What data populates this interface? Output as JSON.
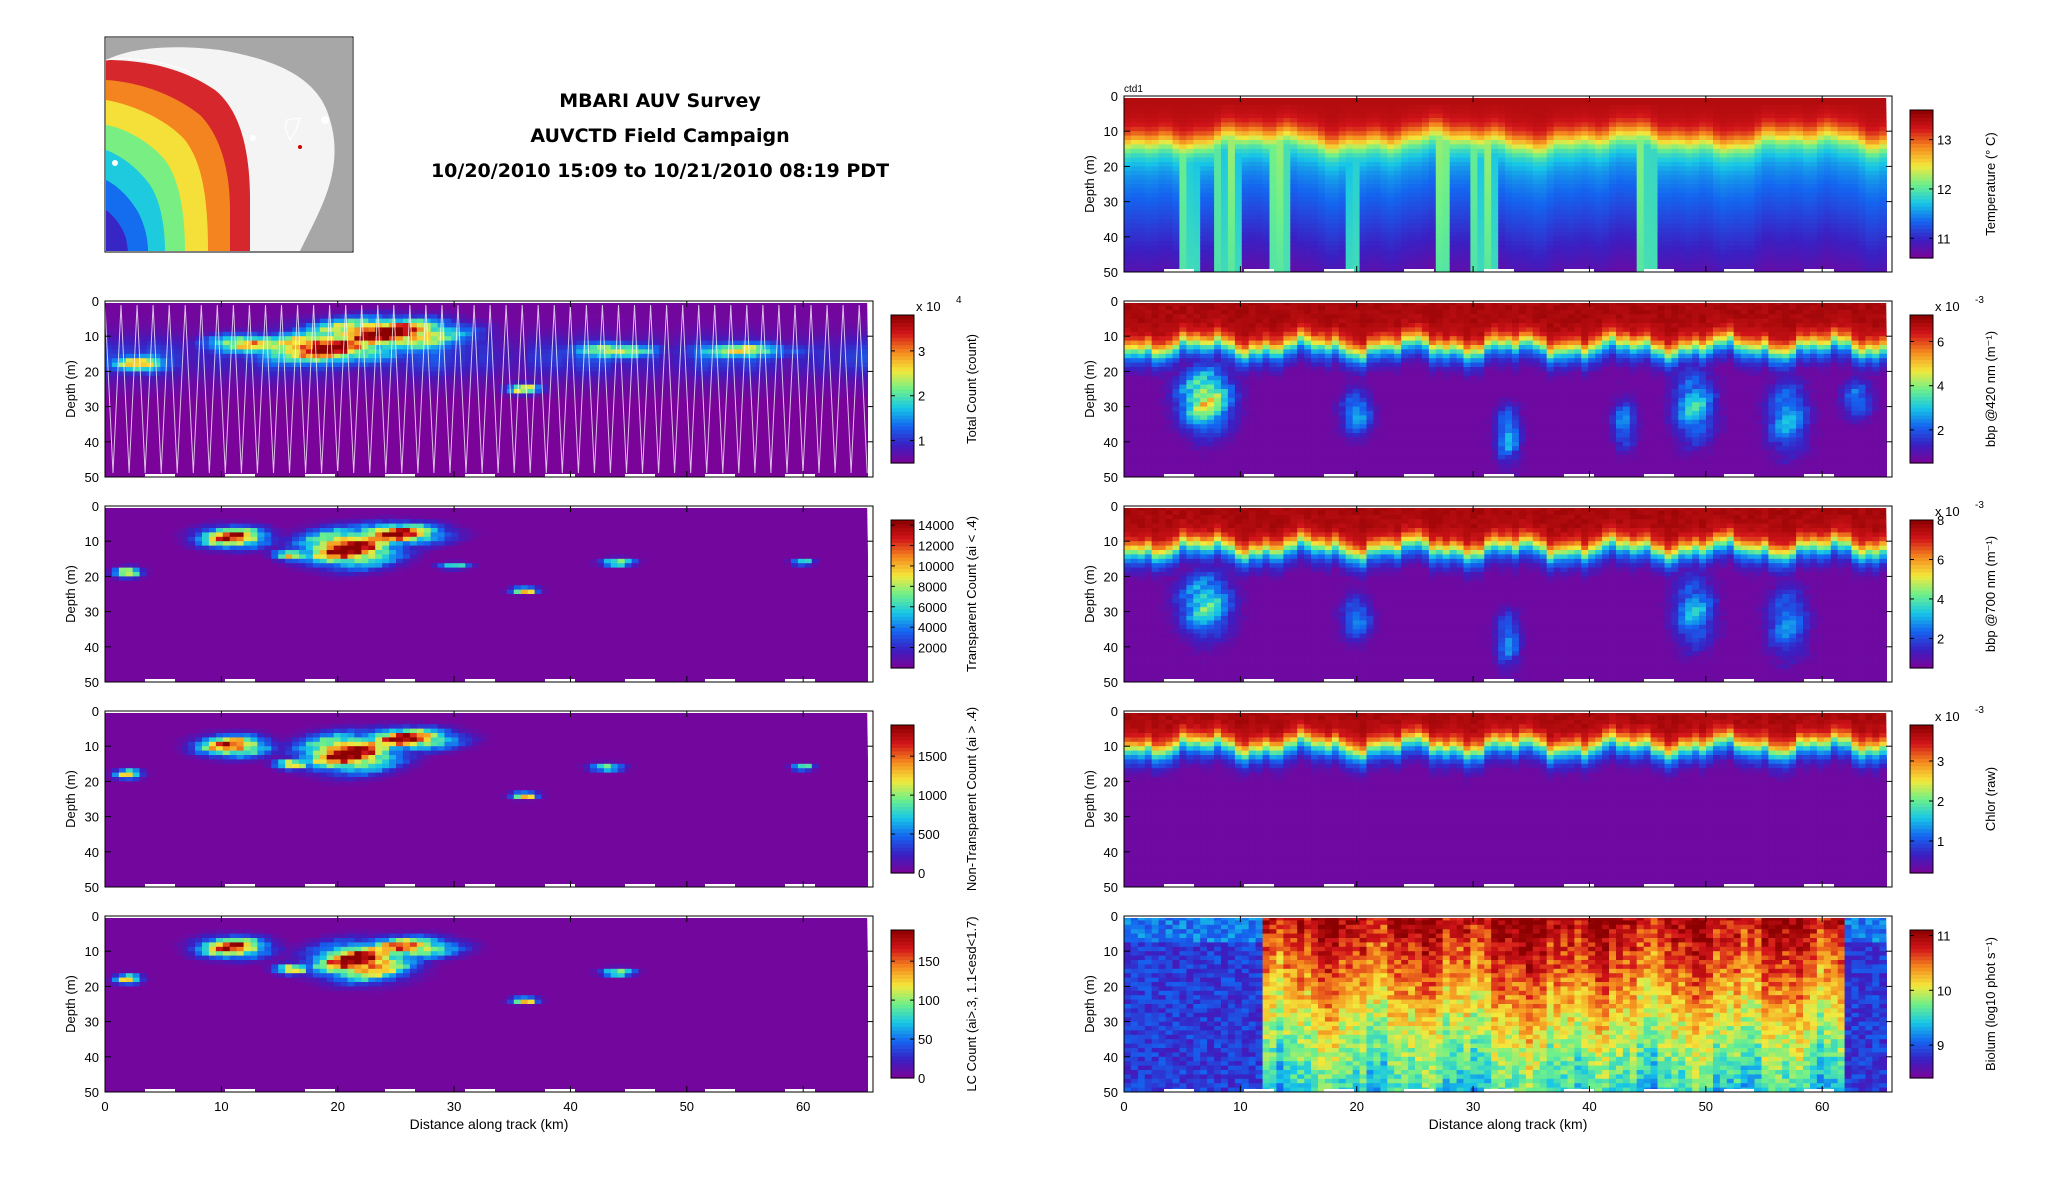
{
  "figure": {
    "title_lines": [
      "MBARI AUV Survey",
      "AUVCTD Field Campaign",
      "10/20/2010 15:09 to 10/21/2010 08:19 PDT"
    ],
    "colors": {
      "land": "#a7a7a7",
      "sea_shallow": "#d33b3b",
      "colormap": [
        "#7e0296",
        "#3b1fc2",
        "#1464f0",
        "#17c7e6",
        "#6ef08a",
        "#f4e83b",
        "#f58c1e",
        "#d3151a",
        "#8b0000"
      ]
    }
  },
  "chart_data": [
    {
      "type": "heatmap",
      "id": "total_count",
      "xlim": [
        0,
        66
      ],
      "ylim": [
        50,
        0
      ],
      "ylabel": "Depth (m)",
      "xlabel": "",
      "yticks": [
        0,
        10,
        20,
        30,
        40,
        50
      ],
      "xticks": [],
      "colorbar": {
        "label": "Total Count (count)",
        "ticks": [
          "1",
          "2",
          "3"
        ],
        "tick_values": [
          1,
          2,
          3
        ],
        "range": [
          0.5,
          3.8
        ],
        "multiplier": "x 10",
        "exponent": "4"
      },
      "pattern": "profiles",
      "blobs": [
        {
          "x": 24,
          "y": 9,
          "rx": 6,
          "ry": 4,
          "v": 1.0
        },
        {
          "x": 19,
          "y": 13,
          "rx": 5,
          "ry": 4,
          "v": 0.9
        },
        {
          "x": 12,
          "y": 12,
          "rx": 3,
          "ry": 2.5,
          "v": 0.65
        },
        {
          "x": 3,
          "y": 18,
          "rx": 2,
          "ry": 2,
          "v": 0.6
        },
        {
          "x": 44,
          "y": 14,
          "rx": 3,
          "ry": 2,
          "v": 0.55
        },
        {
          "x": 55,
          "y": 14,
          "rx": 4,
          "ry": 2,
          "v": 0.45
        },
        {
          "x": 36,
          "y": 25,
          "rx": 1.5,
          "ry": 1.5,
          "v": 0.6
        }
      ]
    },
    {
      "type": "heatmap",
      "id": "transparent_count",
      "xlim": [
        0,
        66
      ],
      "ylim": [
        50,
        0
      ],
      "ylabel": "Depth (m)",
      "xlabel": "",
      "yticks": [
        0,
        10,
        20,
        30,
        40,
        50
      ],
      "xticks": [],
      "colorbar": {
        "label": "Transparent Count (ai < .4)",
        "ticks": [
          "2000",
          "4000",
          "6000",
          "8000",
          "10000",
          "12000",
          "14000"
        ],
        "tick_values": [
          2000,
          4000,
          6000,
          8000,
          10000,
          12000,
          14000
        ],
        "range": [
          0,
          14500
        ]
      },
      "pattern": "blobs",
      "blobs": [
        {
          "x": 21,
          "y": 12,
          "rx": 4,
          "ry": 5,
          "v": 1.0
        },
        {
          "x": 25,
          "y": 8,
          "rx": 4,
          "ry": 3,
          "v": 0.9
        },
        {
          "x": 11,
          "y": 9,
          "rx": 3,
          "ry": 3,
          "v": 0.85
        },
        {
          "x": 16,
          "y": 14,
          "rx": 1.5,
          "ry": 1.5,
          "v": 0.8
        },
        {
          "x": 2,
          "y": 19,
          "rx": 1.2,
          "ry": 1.5,
          "v": 0.7
        },
        {
          "x": 36,
          "y": 24,
          "rx": 1.2,
          "ry": 1,
          "v": 0.7
        },
        {
          "x": 44,
          "y": 16,
          "rx": 1.5,
          "ry": 1.2,
          "v": 0.55
        },
        {
          "x": 30,
          "y": 17,
          "rx": 1.5,
          "ry": 1,
          "v": 0.4
        },
        {
          "x": 60,
          "y": 16,
          "rx": 1,
          "ry": 1,
          "v": 0.45
        }
      ]
    },
    {
      "type": "heatmap",
      "id": "nontransparent_count",
      "xlim": [
        0,
        66
      ],
      "ylim": [
        50,
        0
      ],
      "ylabel": "Depth (m)",
      "xlabel": "",
      "yticks": [
        0,
        10,
        20,
        30,
        40,
        50
      ],
      "xticks": [],
      "colorbar": {
        "label": "Non-Transparent Count (ai > .4)",
        "ticks": [
          "0",
          "500",
          "1000",
          "1500"
        ],
        "tick_values": [
          0,
          500,
          1000,
          1500
        ],
        "range": [
          0,
          1900
        ]
      },
      "pattern": "blobs",
      "blobs": [
        {
          "x": 21,
          "y": 12,
          "rx": 4,
          "ry": 5,
          "v": 1.0
        },
        {
          "x": 26,
          "y": 8,
          "rx": 4,
          "ry": 3,
          "v": 0.9
        },
        {
          "x": 11,
          "y": 10,
          "rx": 3,
          "ry": 3,
          "v": 0.85
        },
        {
          "x": 16,
          "y": 15,
          "rx": 1.5,
          "ry": 1.5,
          "v": 0.75
        },
        {
          "x": 2,
          "y": 18,
          "rx": 1.2,
          "ry": 1.5,
          "v": 0.6
        },
        {
          "x": 36,
          "y": 24,
          "rx": 1.2,
          "ry": 1,
          "v": 0.7
        },
        {
          "x": 43,
          "y": 16,
          "rx": 1.5,
          "ry": 1.2,
          "v": 0.55
        },
        {
          "x": 60,
          "y": 16,
          "rx": 1,
          "ry": 1,
          "v": 0.5
        }
      ]
    },
    {
      "type": "heatmap",
      "id": "lc_count",
      "xlim": [
        0,
        66
      ],
      "ylim": [
        50,
        0
      ],
      "ylabel": "Depth (m)",
      "xlabel": "Distance along track (km)",
      "yticks": [
        0,
        10,
        20,
        30,
        40,
        50
      ],
      "xticks": [
        0,
        10,
        20,
        30,
        40,
        50,
        60
      ],
      "colorbar": {
        "label": "LC Count (ai>.3, 1.1<esd<1.7)",
        "ticks": [
          "0",
          "50",
          "100",
          "150"
        ],
        "tick_values": [
          0,
          50,
          100,
          150
        ],
        "range": [
          0,
          190
        ]
      },
      "pattern": "blobs",
      "blobs": [
        {
          "x": 22,
          "y": 13,
          "rx": 4,
          "ry": 5,
          "v": 1.0
        },
        {
          "x": 26,
          "y": 9,
          "rx": 4,
          "ry": 3,
          "v": 0.8
        },
        {
          "x": 11,
          "y": 9,
          "rx": 3,
          "ry": 3,
          "v": 0.85
        },
        {
          "x": 16,
          "y": 15,
          "rx": 1.5,
          "ry": 1.5,
          "v": 0.75
        },
        {
          "x": 2,
          "y": 18,
          "rx": 1.2,
          "ry": 1.5,
          "v": 0.6
        },
        {
          "x": 36,
          "y": 24,
          "rx": 1.2,
          "ry": 1,
          "v": 0.7
        },
        {
          "x": 44,
          "y": 16,
          "rx": 1.5,
          "ry": 1.2,
          "v": 0.55
        }
      ]
    },
    {
      "type": "heatmap",
      "id": "temperature",
      "xlim": [
        0,
        66
      ],
      "ylim": [
        50,
        0
      ],
      "ylabel": "Depth (m)",
      "xlabel": "",
      "panel_tag": "ctd1",
      "yticks": [
        0,
        10,
        20,
        30,
        40,
        50
      ],
      "xticks": [],
      "colorbar": {
        "label": "Temperature (° C)",
        "ticks": [
          "11",
          "12",
          "13"
        ],
        "tick_values": [
          11,
          12,
          13
        ],
        "range": [
          10.6,
          13.6
        ]
      },
      "pattern": "stratified",
      "mixed_layer_m": 18,
      "warm_columns": [
        [
          5,
          6.5
        ],
        [
          8,
          10
        ],
        [
          12.5,
          14
        ],
        [
          19,
          20
        ],
        [
          27,
          28
        ],
        [
          30,
          32
        ],
        [
          44,
          46
        ]
      ]
    },
    {
      "type": "heatmap",
      "id": "bbp420",
      "xlim": [
        0,
        66
      ],
      "ylim": [
        50,
        0
      ],
      "ylabel": "Depth (m)",
      "xlabel": "",
      "yticks": [
        0,
        10,
        20,
        30,
        40,
        50
      ],
      "xticks": [],
      "colorbar": {
        "label": "bbp @420 nm (m⁻¹)",
        "ticks": [
          "2",
          "4",
          "6"
        ],
        "tick_values": [
          2,
          4,
          6
        ],
        "range": [
          0.5,
          7.2
        ],
        "multiplier": "x 10",
        "exponent": "-3"
      },
      "pattern": "surface",
      "surface_layer_m": 13,
      "plumes": [
        {
          "x": 7,
          "y": 28,
          "rx": 2.5,
          "ry": 10,
          "v": 0.6
        },
        {
          "x": 20,
          "y": 32,
          "rx": 1.5,
          "ry": 7,
          "v": 0.35
        },
        {
          "x": 33,
          "y": 38,
          "rx": 1.2,
          "ry": 9,
          "v": 0.35
        },
        {
          "x": 43,
          "y": 35,
          "rx": 1.2,
          "ry": 8,
          "v": 0.3
        },
        {
          "x": 49,
          "y": 30,
          "rx": 2,
          "ry": 11,
          "v": 0.4
        },
        {
          "x": 57,
          "y": 33,
          "rx": 2,
          "ry": 11,
          "v": 0.35
        },
        {
          "x": 63,
          "y": 28,
          "rx": 1.5,
          "ry": 6,
          "v": 0.3
        }
      ]
    },
    {
      "type": "heatmap",
      "id": "bbp700",
      "xlim": [
        0,
        66
      ],
      "ylim": [
        50,
        0
      ],
      "ylabel": "Depth (m)",
      "xlabel": "",
      "yticks": [
        0,
        10,
        20,
        30,
        40,
        50
      ],
      "xticks": [],
      "colorbar": {
        "label": "bbp @700 nm (m⁻¹)",
        "ticks": [
          "2",
          "4",
          "6",
          "8"
        ],
        "tick_values": [
          2,
          4,
          6,
          8
        ],
        "range": [
          0.5,
          8
        ],
        "multiplier": "x 10",
        "exponent": "-3"
      },
      "pattern": "surface",
      "surface_layer_m": 12,
      "plumes": [
        {
          "x": 7,
          "y": 28,
          "rx": 2.5,
          "ry": 10,
          "v": 0.45
        },
        {
          "x": 20,
          "y": 32,
          "rx": 1.5,
          "ry": 7,
          "v": 0.3
        },
        {
          "x": 33,
          "y": 38,
          "rx": 1.2,
          "ry": 9,
          "v": 0.3
        },
        {
          "x": 49,
          "y": 30,
          "rx": 2,
          "ry": 11,
          "v": 0.35
        },
        {
          "x": 57,
          "y": 33,
          "rx": 2,
          "ry": 11,
          "v": 0.3
        }
      ]
    },
    {
      "type": "heatmap",
      "id": "chlor",
      "xlim": [
        0,
        66
      ],
      "ylim": [
        50,
        0
      ],
      "ylabel": "Depth (m)",
      "xlabel": "",
      "yticks": [
        0,
        10,
        20,
        30,
        40,
        50
      ],
      "xticks": [],
      "colorbar": {
        "label": "Chlor (raw)",
        "ticks": [
          "1",
          "2",
          "3"
        ],
        "tick_values": [
          1,
          2,
          3
        ],
        "range": [
          0.2,
          3.9
        ],
        "multiplier": "x 10",
        "exponent": "-3"
      },
      "pattern": "surface",
      "surface_layer_m": 10,
      "plumes": []
    },
    {
      "type": "heatmap",
      "id": "biolum",
      "xlim": [
        0,
        66
      ],
      "ylim": [
        50,
        0
      ],
      "ylabel": "Depth (m)",
      "xlabel": "Distance along track (km)",
      "yticks": [
        0,
        10,
        20,
        30,
        40,
        50
      ],
      "xticks": [
        0,
        10,
        20,
        30,
        40,
        50,
        60
      ],
      "colorbar": {
        "label": "Biolum (log10 phot s⁻¹)",
        "ticks": [
          "9",
          "10",
          "11"
        ],
        "tick_values": [
          9,
          10,
          11
        ],
        "range": [
          8.4,
          11.1
        ]
      },
      "pattern": "biolum",
      "low_zone_km": [
        [
          0,
          12
        ],
        [
          62,
          66
        ]
      ]
    }
  ]
}
